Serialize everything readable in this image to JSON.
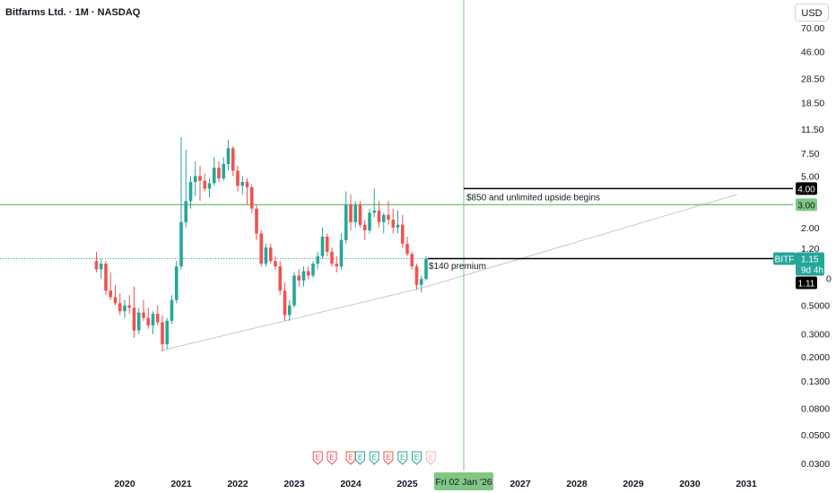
{
  "header": {
    "title": "Bitfarms Ltd. · 1M · NASDAQ",
    "currency_button": "USD"
  },
  "colors": {
    "up": "#26a69a",
    "down": "#ef5350",
    "hline_green": "#81c784",
    "crosshair": "#7cc47a",
    "black": "#000000"
  },
  "chart_data": {
    "type": "candlestick",
    "title": "Bitfarms Ltd. · 1M · NASDAQ",
    "y_scale": "log",
    "ylim": [
      0.025,
      80
    ],
    "y_ticks": [
      "70.00",
      "46.00",
      "28.50",
      "18.50",
      "11.50",
      "7.50",
      "5.00",
      "2.00",
      "1.20",
      "0.5000",
      "0.3000",
      "0.2000",
      "0.1300",
      "0.0800",
      "0.0500",
      "0.0300"
    ],
    "x_ticks": [
      "2020",
      "2021",
      "2022",
      "2023",
      "2024",
      "2025",
      "2027",
      "2028",
      "2029",
      "2030",
      "2031"
    ],
    "x_range": [
      "2019-06",
      "2031-12"
    ],
    "candles": [
      {
        "t": "2019-07",
        "o": 1.1,
        "h": 1.3,
        "l": 0.9,
        "c": 0.95
      },
      {
        "t": "2019-08",
        "o": 0.95,
        "h": 1.15,
        "l": 0.8,
        "c": 1.05
      },
      {
        "t": "2019-09",
        "o": 1.05,
        "h": 1.1,
        "l": 0.6,
        "c": 0.65
      },
      {
        "t": "2019-10",
        "o": 0.65,
        "h": 0.9,
        "l": 0.55,
        "c": 0.58
      },
      {
        "t": "2019-11",
        "o": 0.58,
        "h": 0.72,
        "l": 0.5,
        "c": 0.52
      },
      {
        "t": "2019-12",
        "o": 0.52,
        "h": 0.62,
        "l": 0.42,
        "c": 0.45
      },
      {
        "t": "2020-01",
        "o": 0.45,
        "h": 0.55,
        "l": 0.4,
        "c": 0.5
      },
      {
        "t": "2020-02",
        "o": 0.5,
        "h": 0.6,
        "l": 0.43,
        "c": 0.48
      },
      {
        "t": "2020-03",
        "o": 0.48,
        "h": 0.7,
        "l": 0.28,
        "c": 0.32
      },
      {
        "t": "2020-04",
        "o": 0.32,
        "h": 0.48,
        "l": 0.3,
        "c": 0.44
      },
      {
        "t": "2020-05",
        "o": 0.44,
        "h": 0.55,
        "l": 0.38,
        "c": 0.4
      },
      {
        "t": "2020-06",
        "o": 0.4,
        "h": 0.48,
        "l": 0.33,
        "c": 0.35
      },
      {
        "t": "2020-07",
        "o": 0.35,
        "h": 0.45,
        "l": 0.3,
        "c": 0.43
      },
      {
        "t": "2020-08",
        "o": 0.43,
        "h": 0.5,
        "l": 0.35,
        "c": 0.37
      },
      {
        "t": "2020-09",
        "o": 0.37,
        "h": 0.42,
        "l": 0.22,
        "c": 0.25
      },
      {
        "t": "2020-10",
        "o": 0.25,
        "h": 0.4,
        "l": 0.23,
        "c": 0.38
      },
      {
        "t": "2020-11",
        "o": 0.38,
        "h": 0.6,
        "l": 0.36,
        "c": 0.55
      },
      {
        "t": "2020-12",
        "o": 0.55,
        "h": 1.1,
        "l": 0.52,
        "c": 1.0
      },
      {
        "t": "2021-01",
        "o": 1.0,
        "h": 10.0,
        "l": 0.95,
        "c": 2.2
      },
      {
        "t": "2021-02",
        "o": 2.2,
        "h": 8.0,
        "l": 2.0,
        "c": 3.2
      },
      {
        "t": "2021-03",
        "o": 3.2,
        "h": 5.0,
        "l": 2.8,
        "c": 4.5
      },
      {
        "t": "2021-04",
        "o": 4.5,
        "h": 6.5,
        "l": 3.5,
        "c": 5.0
      },
      {
        "t": "2021-05",
        "o": 5.0,
        "h": 6.0,
        "l": 3.2,
        "c": 4.6
      },
      {
        "t": "2021-06",
        "o": 4.6,
        "h": 5.2,
        "l": 3.8,
        "c": 4.0
      },
      {
        "t": "2021-07",
        "o": 4.0,
        "h": 4.8,
        "l": 3.4,
        "c": 4.4
      },
      {
        "t": "2021-08",
        "o": 4.4,
        "h": 7.0,
        "l": 4.2,
        "c": 5.8
      },
      {
        "t": "2021-09",
        "o": 5.8,
        "h": 6.5,
        "l": 4.5,
        "c": 4.8
      },
      {
        "t": "2021-10",
        "o": 4.8,
        "h": 7.0,
        "l": 4.6,
        "c": 6.2
      },
      {
        "t": "2021-11",
        "o": 6.2,
        "h": 9.5,
        "l": 5.5,
        "c": 8.2
      },
      {
        "t": "2021-12",
        "o": 8.2,
        "h": 8.5,
        "l": 5.0,
        "c": 5.5
      },
      {
        "t": "2022-01",
        "o": 5.5,
        "h": 6.0,
        "l": 3.8,
        "c": 4.2
      },
      {
        "t": "2022-02",
        "o": 4.2,
        "h": 5.0,
        "l": 3.6,
        "c": 4.5
      },
      {
        "t": "2022-03",
        "o": 4.5,
        "h": 4.8,
        "l": 3.0,
        "c": 4.1
      },
      {
        "t": "2022-04",
        "o": 4.1,
        "h": 4.3,
        "l": 2.6,
        "c": 2.8
      },
      {
        "t": "2022-05",
        "o": 2.8,
        "h": 3.0,
        "l": 1.6,
        "c": 1.8
      },
      {
        "t": "2022-06",
        "o": 1.8,
        "h": 1.9,
        "l": 1.0,
        "c": 1.05
      },
      {
        "t": "2022-07",
        "o": 1.05,
        "h": 1.5,
        "l": 1.0,
        "c": 1.4
      },
      {
        "t": "2022-08",
        "o": 1.4,
        "h": 1.5,
        "l": 1.05,
        "c": 1.1
      },
      {
        "t": "2022-09",
        "o": 1.1,
        "h": 1.2,
        "l": 0.95,
        "c": 1.0
      },
      {
        "t": "2022-10",
        "o": 1.0,
        "h": 1.1,
        "l": 0.6,
        "c": 0.65
      },
      {
        "t": "2022-11",
        "o": 0.65,
        "h": 0.75,
        "l": 0.38,
        "c": 0.42
      },
      {
        "t": "2022-12",
        "o": 0.42,
        "h": 0.55,
        "l": 0.38,
        "c": 0.5
      },
      {
        "t": "2023-01",
        "o": 0.5,
        "h": 0.9,
        "l": 0.48,
        "c": 0.85
      },
      {
        "t": "2023-02",
        "o": 0.85,
        "h": 0.95,
        "l": 0.7,
        "c": 0.78
      },
      {
        "t": "2023-03",
        "o": 0.78,
        "h": 1.0,
        "l": 0.7,
        "c": 0.92
      },
      {
        "t": "2023-04",
        "o": 0.92,
        "h": 1.0,
        "l": 0.8,
        "c": 0.85
      },
      {
        "t": "2023-05",
        "o": 0.85,
        "h": 1.1,
        "l": 0.82,
        "c": 1.05
      },
      {
        "t": "2023-06",
        "o": 1.05,
        "h": 1.3,
        "l": 0.95,
        "c": 1.2
      },
      {
        "t": "2023-07",
        "o": 1.2,
        "h": 2.0,
        "l": 1.15,
        "c": 1.7
      },
      {
        "t": "2023-08",
        "o": 1.7,
        "h": 1.8,
        "l": 1.2,
        "c": 1.3
      },
      {
        "t": "2023-09",
        "o": 1.3,
        "h": 1.4,
        "l": 1.0,
        "c": 1.05
      },
      {
        "t": "2023-10",
        "o": 1.05,
        "h": 1.2,
        "l": 0.9,
        "c": 1.0
      },
      {
        "t": "2023-11",
        "o": 1.0,
        "h": 1.8,
        "l": 0.95,
        "c": 1.6
      },
      {
        "t": "2023-12",
        "o": 1.6,
        "h": 3.8,
        "l": 1.5,
        "c": 3.0
      },
      {
        "t": "2024-01",
        "o": 3.0,
        "h": 3.6,
        "l": 1.9,
        "c": 2.2
      },
      {
        "t": "2024-02",
        "o": 2.2,
        "h": 3.2,
        "l": 2.0,
        "c": 3.0
      },
      {
        "t": "2024-03",
        "o": 3.0,
        "h": 3.2,
        "l": 2.0,
        "c": 2.1
      },
      {
        "t": "2024-04",
        "o": 2.1,
        "h": 2.3,
        "l": 1.6,
        "c": 1.9
      },
      {
        "t": "2024-05",
        "o": 1.9,
        "h": 2.8,
        "l": 1.8,
        "c": 2.6
      },
      {
        "t": "2024-06",
        "o": 2.6,
        "h": 4.0,
        "l": 2.4,
        "c": 2.7
      },
      {
        "t": "2024-07",
        "o": 2.7,
        "h": 3.2,
        "l": 2.0,
        "c": 2.2
      },
      {
        "t": "2024-08",
        "o": 2.2,
        "h": 2.6,
        "l": 1.8,
        "c": 2.5
      },
      {
        "t": "2024-09",
        "o": 2.5,
        "h": 3.2,
        "l": 2.1,
        "c": 2.3
      },
      {
        "t": "2024-10",
        "o": 2.3,
        "h": 2.8,
        "l": 1.8,
        "c": 2.0
      },
      {
        "t": "2024-11",
        "o": 2.0,
        "h": 2.7,
        "l": 1.8,
        "c": 2.1
      },
      {
        "t": "2024-12",
        "o": 2.1,
        "h": 2.5,
        "l": 1.4,
        "c": 1.5
      },
      {
        "t": "2025-01",
        "o": 1.5,
        "h": 1.7,
        "l": 1.2,
        "c": 1.25
      },
      {
        "t": "2025-02",
        "o": 1.25,
        "h": 1.3,
        "l": 0.95,
        "c": 1.0
      },
      {
        "t": "2025-03",
        "o": 1.0,
        "h": 1.05,
        "l": 0.66,
        "c": 0.72
      },
      {
        "t": "2025-04",
        "o": 0.72,
        "h": 0.85,
        "l": 0.63,
        "c": 0.8
      },
      {
        "t": "2025-05",
        "o": 0.8,
        "h": 1.2,
        "l": 0.78,
        "c": 1.15
      }
    ],
    "last_price": 1.15,
    "hlines": [
      {
        "price": 4.0,
        "color": "#000000",
        "label": "4.00"
      },
      {
        "price": 3.0,
        "color": "#81c784",
        "label": "3.00"
      },
      {
        "price": 1.15,
        "color": "#000000",
        "label": "1.15"
      }
    ],
    "trendlines": [
      {
        "from": {
          "t": "2020-09",
          "price": 0.225
        },
        "to": {
          "t": "2025-04",
          "price": 0.68
        }
      },
      {
        "from": {
          "t": "2025-04",
          "price": 0.68
        },
        "to": {
          "t": "2030-11",
          "price": 3.6
        }
      }
    ],
    "annotations": [
      {
        "text": "$850 and unlimited upside begins",
        "t": "2026-01",
        "price": 3.45
      },
      {
        "text": "$140 premium",
        "t": "2025-05",
        "price": 1.02
      }
    ],
    "crosshair": {
      "date_label": "Fri 02 Jan '26",
      "t": "2026-01"
    },
    "earnings_markers": [
      "2023-06",
      "2023-09",
      "2024-01",
      "2024-03",
      "2024-06",
      "2024-09",
      "2024-12",
      "2025-03",
      "2025-06"
    ],
    "price_tags": {
      "symbol": "BITF",
      "last": "1.15",
      "countdown": "9d 4h",
      "low": "1.11",
      "level_high": "4.00",
      "level_mid": "3.00",
      "clipped": "1.20",
      "clipped_right": "0"
    }
  }
}
